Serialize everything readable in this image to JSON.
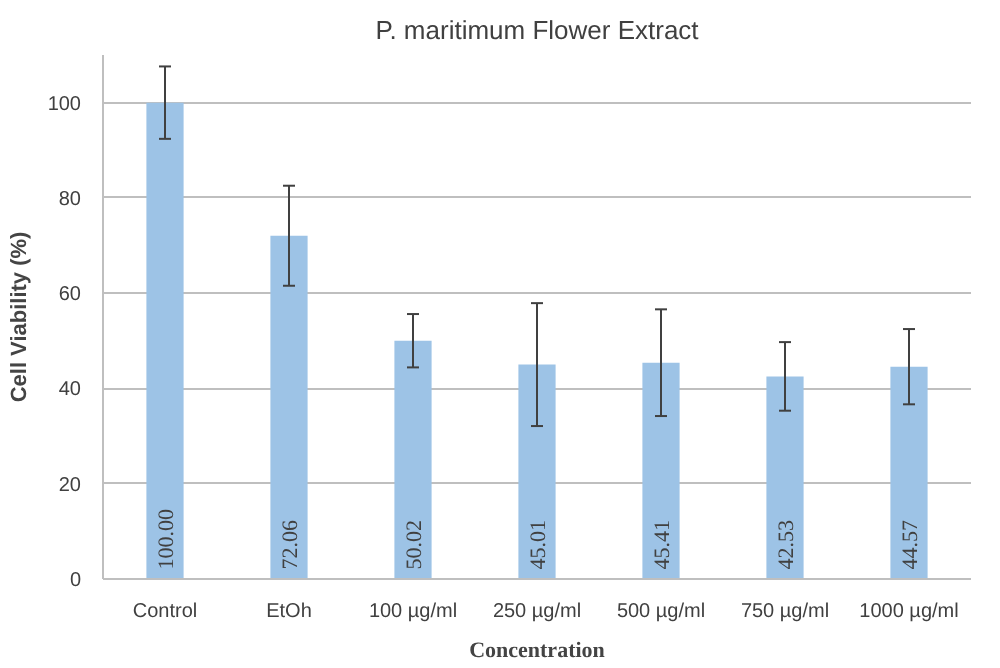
{
  "chart_data": {
    "type": "bar",
    "title": "P. maritimum Flower Extract",
    "xlabel": "Concentration",
    "ylabel": "Cell Viability (%)",
    "categories": [
      "Control",
      "EtOh",
      "100 µg/ml",
      "250 µg/ml",
      "500 µg/ml",
      "750 µg/ml",
      "1000 µg/ml"
    ],
    "values": [
      100.0,
      72.06,
      50.02,
      45.01,
      45.41,
      42.53,
      44.57
    ],
    "errors": [
      7.6,
      10.5,
      5.6,
      12.9,
      11.2,
      7.2,
      7.9
    ],
    "value_labels": [
      "100.00",
      "72.06",
      "50.02",
      "45.01",
      "45.41",
      "42.53",
      "44.57"
    ],
    "color": "#9dc3e6",
    "ylim": [
      0,
      110
    ],
    "yticks": [
      0,
      20,
      40,
      60,
      80,
      100
    ],
    "grid": "y"
  }
}
